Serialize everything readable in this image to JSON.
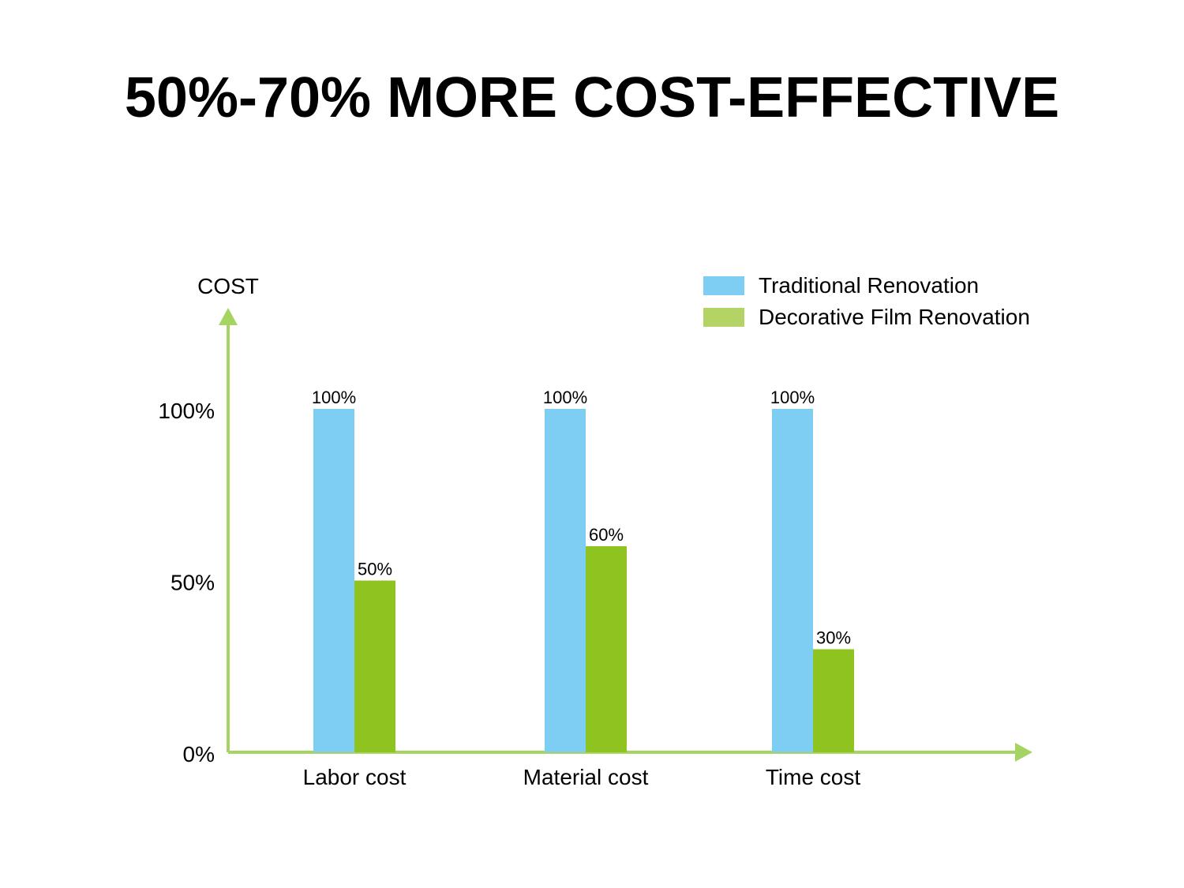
{
  "title": "50%-70% MORE COST-EFFECTIVE",
  "colors": {
    "axis": "#a6d463",
    "traditional": "#7ecef4",
    "decorative": "#8fc31f",
    "decorative_legend": "#b3d465"
  },
  "chart_data": {
    "type": "bar",
    "ylabel": "COST",
    "xlabel": "",
    "categories": [
      "Labor cost",
      "Material cost",
      "Time cost"
    ],
    "series": [
      {
        "name": "Traditional Renovation",
        "values": [
          100,
          100,
          100
        ],
        "labels": [
          "100%",
          "100%",
          "100%"
        ]
      },
      {
        "name": "Decorative Film Renovation",
        "values": [
          50,
          60,
          30
        ],
        "labels": [
          "50%",
          "60%",
          "30%"
        ]
      }
    ],
    "yticks": [
      {
        "value": 0,
        "label": "0%"
      },
      {
        "value": 50,
        "label": "50%"
      },
      {
        "value": 100,
        "label": "100%"
      }
    ],
    "ylim": [
      0,
      100
    ],
    "grid": false,
    "legend_position": "top-right"
  }
}
